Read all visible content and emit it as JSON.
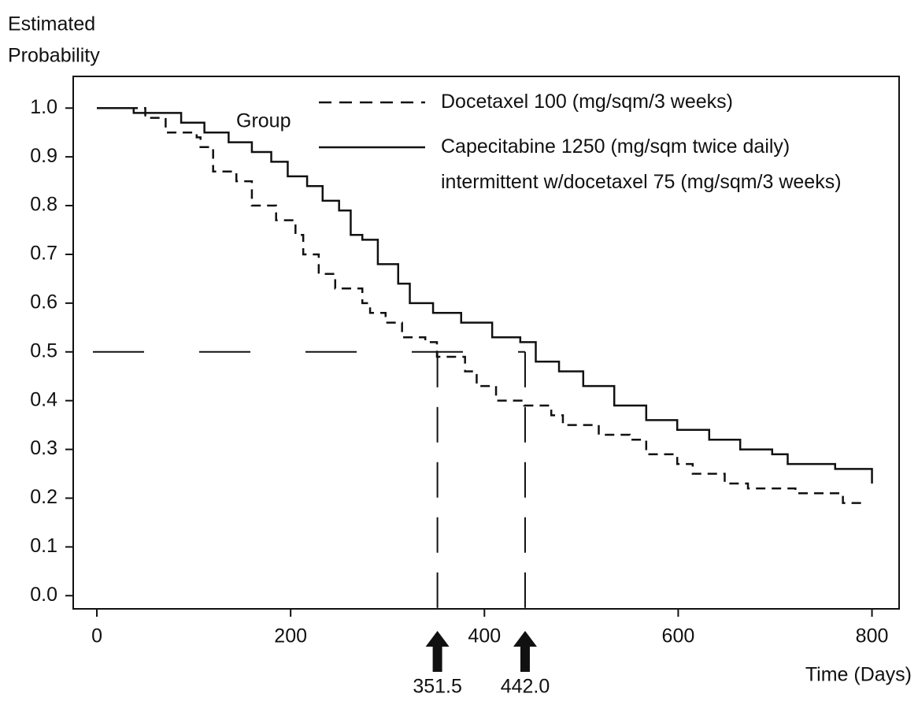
{
  "chart_data": {
    "type": "step",
    "ylabel": [
      "Estimated",
      "Probability"
    ],
    "xlabel": "Time (Days)",
    "legend_title": "Group",
    "xlim": [
      -24.4,
      828
    ],
    "ylim": [
      -0.027,
      1.065
    ],
    "xticks": [
      0,
      200,
      400,
      600,
      800
    ],
    "yticks": [
      {
        "value": 1,
        "label": "1.0"
      },
      0.9,
      0.8,
      0.7,
      0.6,
      0.5,
      0.4,
      0.3,
      0.2,
      0.1,
      {
        "value": 0,
        "label": "0.0"
      }
    ],
    "median_level": 0.5,
    "median_markers": [
      351.5,
      {
        "value": 442,
        "label": "442.0"
      }
    ],
    "series": [
      {
        "name": "Docetaxel 100 (mg/sqm/3 weeks)",
        "color": "#111111",
        "dash": true,
        "x": [
          0,
          50,
          71,
          103,
          107,
          120,
          144,
          160,
          185,
          205,
          213,
          229,
          246,
          274,
          282,
          298,
          315,
          339,
          351,
          380,
          392,
          412,
          441,
          469,
          481,
          518,
          550,
          567,
          599,
          615,
          648,
          672,
          721,
          770,
          794
        ],
        "values": [
          1.0,
          0.98,
          0.95,
          0.94,
          0.92,
          0.87,
          0.85,
          0.8,
          0.77,
          0.74,
          0.7,
          0.66,
          0.63,
          0.6,
          0.58,
          0.56,
          0.53,
          0.52,
          0.49,
          0.46,
          0.43,
          0.4,
          0.39,
          0.37,
          0.35,
          0.33,
          0.32,
          0.29,
          0.27,
          0.25,
          0.23,
          0.22,
          0.21,
          0.19,
          0.19
        ]
      },
      {
        "name": "Capecitabine 1250 (mg/sqm twice daily) intermittent w/docetaxel 75 (mg/sqm/3 weeks)",
        "color": "#111111",
        "dash": false,
        "x": [
          0,
          38,
          75,
          87,
          111,
          136,
          160,
          180,
          197,
          217,
          233,
          250,
          262,
          274,
          290,
          311,
          323,
          347,
          376,
          408,
          437,
          453,
          477,
          502,
          534,
          567,
          599,
          632,
          664,
          697,
          713,
          762,
          794,
          800
        ],
        "values": [
          1.0,
          0.99,
          0.99,
          0.97,
          0.95,
          0.93,
          0.91,
          0.89,
          0.86,
          0.84,
          0.81,
          0.79,
          0.74,
          0.73,
          0.68,
          0.64,
          0.6,
          0.58,
          0.56,
          0.53,
          0.52,
          0.48,
          0.46,
          0.43,
          0.39,
          0.36,
          0.34,
          0.32,
          0.3,
          0.29,
          0.27,
          0.26,
          0.26,
          0.23
        ]
      }
    ]
  }
}
